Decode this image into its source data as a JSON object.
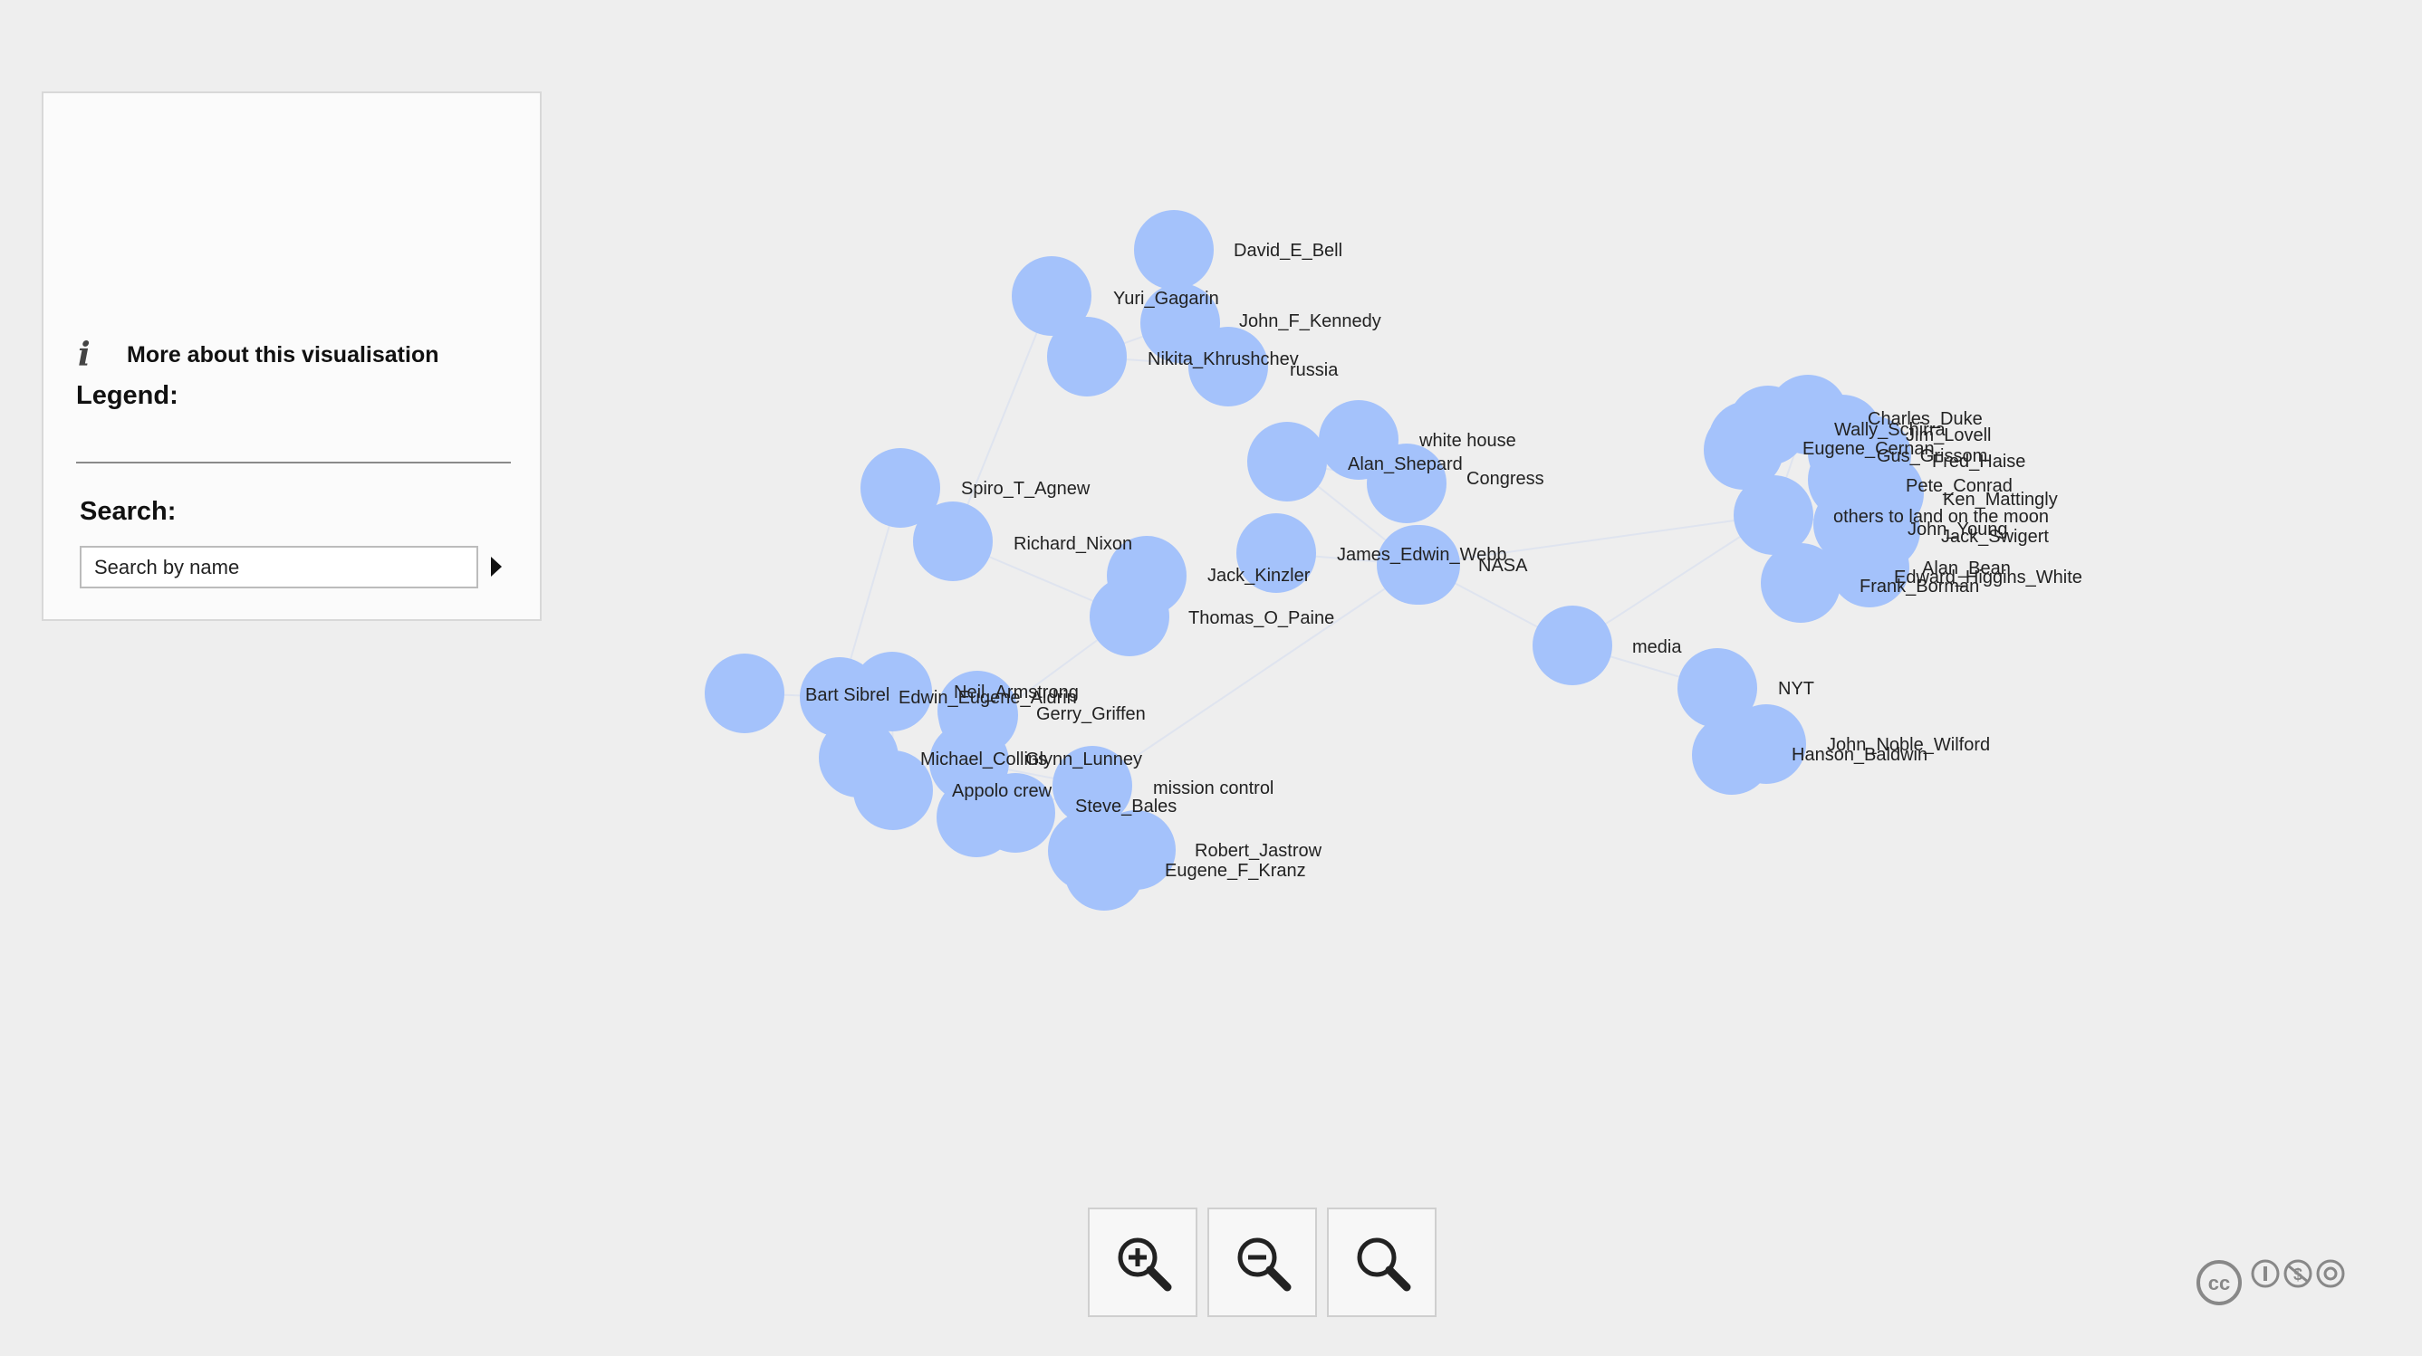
{
  "panel": {
    "info_link": "More about this visualisation",
    "legend_title": "Legend:",
    "search_title": "Search:",
    "search_placeholder": "Search by name"
  },
  "graph": {
    "node_color": "#a4c2fb",
    "link_color": "#dfe4ef",
    "nodes": [
      {
        "label": "David_E_Bell"
      },
      {
        "label": "Yuri_Gagarin"
      },
      {
        "label": "John_F_Kennedy"
      },
      {
        "label": "Nikita_Khrushchev"
      },
      {
        "label": "russia"
      },
      {
        "label": "white house"
      },
      {
        "label": "Alan_Shepard"
      },
      {
        "label": "Congress"
      },
      {
        "label": "Spiro_T_Agnew"
      },
      {
        "label": "Richard_Nixon"
      },
      {
        "label": "James_Edwin_Webb"
      },
      {
        "label": "NASA"
      },
      {
        "label": "Jack_Kinzler"
      },
      {
        "label": "Thomas_O_Paine"
      },
      {
        "label": "media"
      },
      {
        "label": "Bart Sibrel"
      },
      {
        "label": "Edwin_Eugene_Aldrin"
      },
      {
        "label": "Neil_Armstrong"
      },
      {
        "label": "Gerry_Griffen"
      },
      {
        "label": "Michael_Collins"
      },
      {
        "label": "Glynn_Lunney"
      },
      {
        "label": "Appolo crew"
      },
      {
        "label": "mission control"
      },
      {
        "label": "Steve_Bales"
      },
      {
        "label": "Robert_Jastrow"
      },
      {
        "label": "Eugene_F_Kranz"
      },
      {
        "label": "NYT"
      },
      {
        "label": "John_Noble_Wilford"
      },
      {
        "label": "Hanson_Baldwin"
      },
      {
        "label": "Charles_Duke"
      },
      {
        "label": "Wally_Schirra"
      },
      {
        "label": "Jim_Lovell"
      },
      {
        "label": "Eugene_Cernan"
      },
      {
        "label": "Gus_Grissom"
      },
      {
        "label": "Fred_Haise"
      },
      {
        "label": "Pete_Conrad"
      },
      {
        "label": "Ken_Mattingly"
      },
      {
        "label": "others to land on the moon"
      },
      {
        "label": "John_Young"
      },
      {
        "label": "Jack_Swigert"
      },
      {
        "label": "Alan_Bean"
      },
      {
        "label": "Edward_Higgins_White"
      },
      {
        "label": "Frank_Borman"
      },
      {
        "label": ""
      },
      {
        "label": ""
      },
      {
        "label": ""
      },
      {
        "label": ""
      },
      {
        "label": ""
      }
    ]
  },
  "zoom": {
    "zoom_in_icon": "zoom-in-icon",
    "zoom_out_icon": "zoom-out-icon",
    "zoom_reset_icon": "magnifier-icon"
  },
  "license": {
    "icon": "creative-commons-by-nc-sa-icon"
  }
}
